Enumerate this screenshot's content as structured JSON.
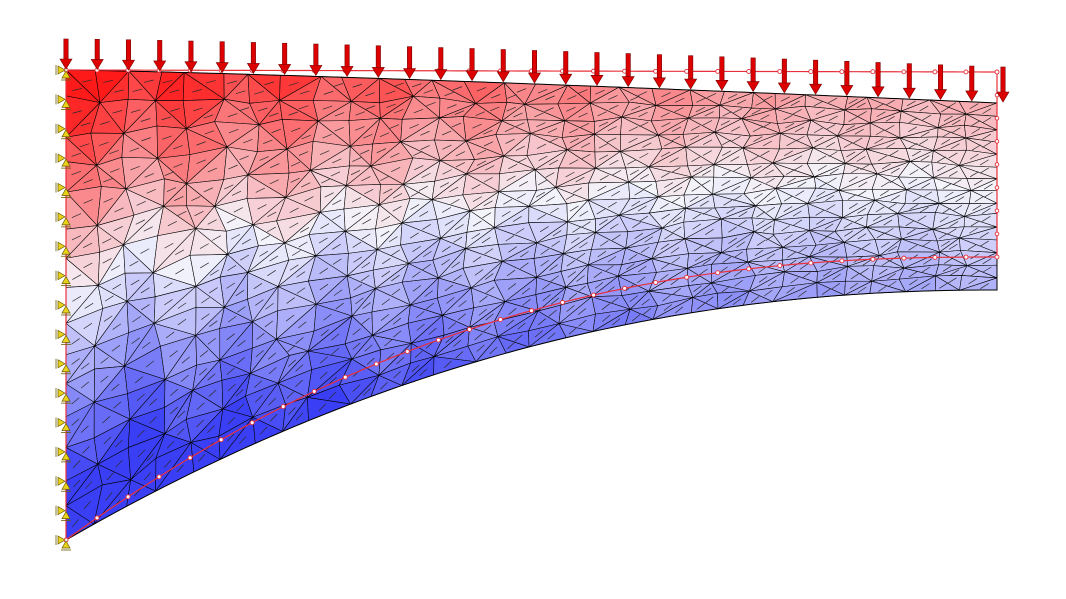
{
  "view": {
    "type": "finite-element-stress-plot",
    "colors": {
      "high": "#ff1a1a",
      "low": "#3a3ff5",
      "neutral": "#f4f4fb",
      "mesh": "#000000",
      "load": "#dd0000",
      "deformed": "#e8303a",
      "support": "#e8d21a"
    },
    "icons": {
      "load": "down-arrow-icon",
      "support": "pin-support-icon"
    }
  }
}
